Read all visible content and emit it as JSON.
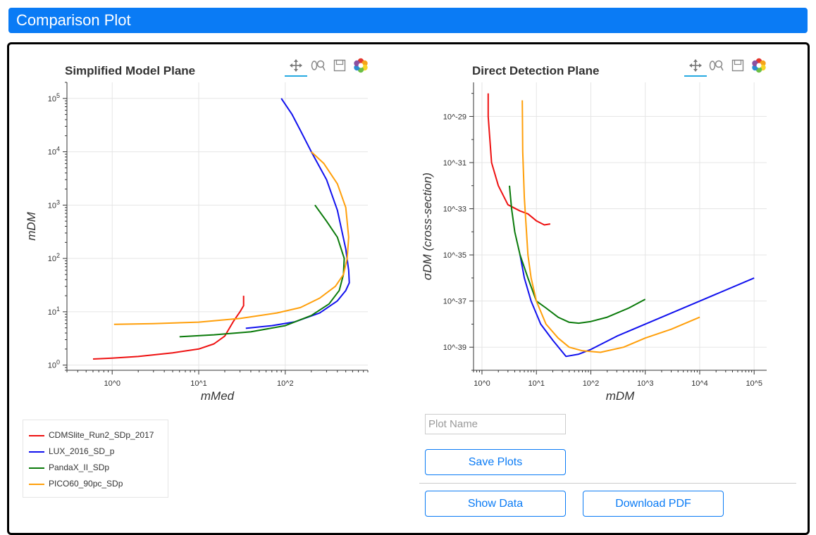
{
  "header": {
    "title": "Comparison Plot"
  },
  "plots": [
    {
      "title": "Simplified Model Plane",
      "xlabel": "mMed",
      "ylabel": "mDM",
      "xticks": [
        "10^0",
        "10^1",
        "10^2"
      ],
      "yticks": [
        {
          "base": "10",
          "exp": "5"
        },
        {
          "base": "10",
          "exp": "4"
        },
        {
          "base": "10",
          "exp": "3"
        },
        {
          "base": "10",
          "exp": "2"
        },
        {
          "base": "10",
          "exp": "1"
        },
        {
          "base": "10",
          "exp": "0"
        }
      ]
    },
    {
      "title": "Direct Detection Plane",
      "xlabel": "mDM",
      "ylabel": "σDM (cross-section)",
      "xticks": [
        "10^0",
        "10^1",
        "10^2",
        "10^3",
        "10^4",
        "10^5"
      ],
      "yticks": [
        "10^-29",
        "10^-31",
        "10^-33",
        "10^-35",
        "10^-37",
        "10^-39"
      ]
    }
  ],
  "toolbar_icons": [
    "pan-icon",
    "wheel-zoom-icon",
    "save-icon",
    "bokeh-logo-icon"
  ],
  "legend": [
    {
      "label": "CDMSlite_Run2_SDp_2017",
      "color": "#ee1111"
    },
    {
      "label": "LUX_2016_SD_p",
      "color": "#1111ee"
    },
    {
      "label": "PandaX_II_SDp",
      "color": "#0a7a0a"
    },
    {
      "label": "PICO60_90pc_SDp",
      "color": "#ff9f0a"
    }
  ],
  "chart_data": [
    {
      "type": "line",
      "title": "Simplified Model Plane",
      "xlabel": "mMed",
      "ylabel": "mDM",
      "xscale": "log",
      "yscale": "log",
      "xlim": [
        0.3,
        900
      ],
      "ylim": [
        0.8,
        200000
      ],
      "series": [
        {
          "name": "CDMSlite_Run2_SDp_2017",
          "color": "#ee1111",
          "x": [
            0.6,
            1,
            2,
            5,
            10,
            15,
            20,
            25,
            28,
            30,
            33,
            33
          ],
          "y": [
            1.3,
            1.35,
            1.45,
            1.7,
            2.0,
            2.5,
            3.5,
            6.5,
            8.5,
            10,
            13,
            20
          ]
        },
        {
          "name": "LUX_2016_SD_p",
          "color": "#1111ee",
          "x": [
            35,
            70,
            130,
            250,
            400,
            500,
            550,
            540,
            500,
            400,
            300,
            200,
            150,
            120,
            90
          ],
          "y": [
            4.9,
            5.5,
            6.5,
            9.5,
            16,
            25,
            35,
            60,
            150,
            800,
            3000,
            10000,
            25000,
            50000,
            100000
          ]
        },
        {
          "name": "PandaX_II_SDp",
          "color": "#0a7a0a",
          "x": [
            6,
            15,
            40,
            100,
            200,
            320,
            420,
            470,
            480,
            400,
            300,
            220
          ],
          "y": [
            3.4,
            3.7,
            4.2,
            5.5,
            8.5,
            14,
            25,
            50,
            100,
            250,
            500,
            1000
          ]
        },
        {
          "name": "PICO60_90pc_SDp",
          "color": "#ff9f0a",
          "x": [
            1.05,
            3,
            10,
            30,
            80,
            150,
            250,
            380,
            470,
            520,
            540,
            500,
            400,
            280,
            200
          ],
          "y": [
            5.8,
            6.0,
            6.4,
            7.5,
            9.5,
            12,
            18,
            30,
            50,
            100,
            250,
            900,
            2500,
            6000,
            10000
          ]
        }
      ]
    },
    {
      "type": "line",
      "title": "Direct Detection Plane",
      "xlabel": "mDM",
      "ylabel": "σDM (cross-section)",
      "xscale": "log",
      "yscale": "log",
      "xlim": [
        0.7,
        170000
      ],
      "ylim": [
        1e-40,
        3e-28
      ],
      "series": [
        {
          "name": "CDMSlite_Run2_SDp_2017",
          "color": "#ee1111",
          "x": [
            1.3,
            1.3,
            1.5,
            2,
            3,
            5,
            7,
            10,
            14,
            18
          ],
          "y": [
            1e-28,
            1e-29,
            1e-31,
            1e-32,
            1.5e-33,
            8e-34,
            6e-34,
            3e-34,
            2e-34,
            2.2e-34
          ]
        },
        {
          "name": "LUX_2016_SD_p",
          "color": "#1111ee",
          "x": [
            5,
            6,
            8,
            12,
            20,
            35,
            60,
            100,
            300,
            1000,
            10000,
            100000
          ],
          "y": [
            1e-35,
            1e-36,
            1e-37,
            1e-38,
            2e-39,
            4e-40,
            5e-40,
            8e-40,
            3e-39,
            1e-38,
            1e-37,
            1e-36
          ]
        },
        {
          "name": "PandaX_II_SDp",
          "color": "#0a7a0a",
          "x": [
            3.2,
            3.5,
            4,
            5,
            7,
            10,
            15,
            25,
            40,
            60,
            100,
            200,
            500,
            1000
          ],
          "y": [
            1e-32,
            1e-33,
            1e-34,
            1e-35,
            1e-36,
            1e-37,
            5e-38,
            2e-38,
            1.2e-38,
            1.1e-38,
            1.3e-38,
            2e-38,
            5e-38,
            1.2e-37
          ]
        },
        {
          "name": "PICO60_90pc_SDp",
          "color": "#ff9f0a",
          "x": [
            5.5,
            5.6,
            6,
            7,
            8,
            10,
            15,
            25,
            40,
            70,
            150,
            400,
            1000,
            3000,
            10000
          ],
          "y": [
            5e-29,
            3e-31,
            3e-33,
            1e-35,
            1e-36,
            1e-37,
            1e-38,
            2.5e-39,
            1e-39,
            7e-40,
            6e-40,
            1e-39,
            2.5e-39,
            6e-39,
            2e-38
          ]
        }
      ]
    }
  ],
  "form": {
    "plot_name_placeholder": "Plot Name",
    "save_label": "Save Plots",
    "show_data_label": "Show Data",
    "download_label": "Download PDF"
  }
}
